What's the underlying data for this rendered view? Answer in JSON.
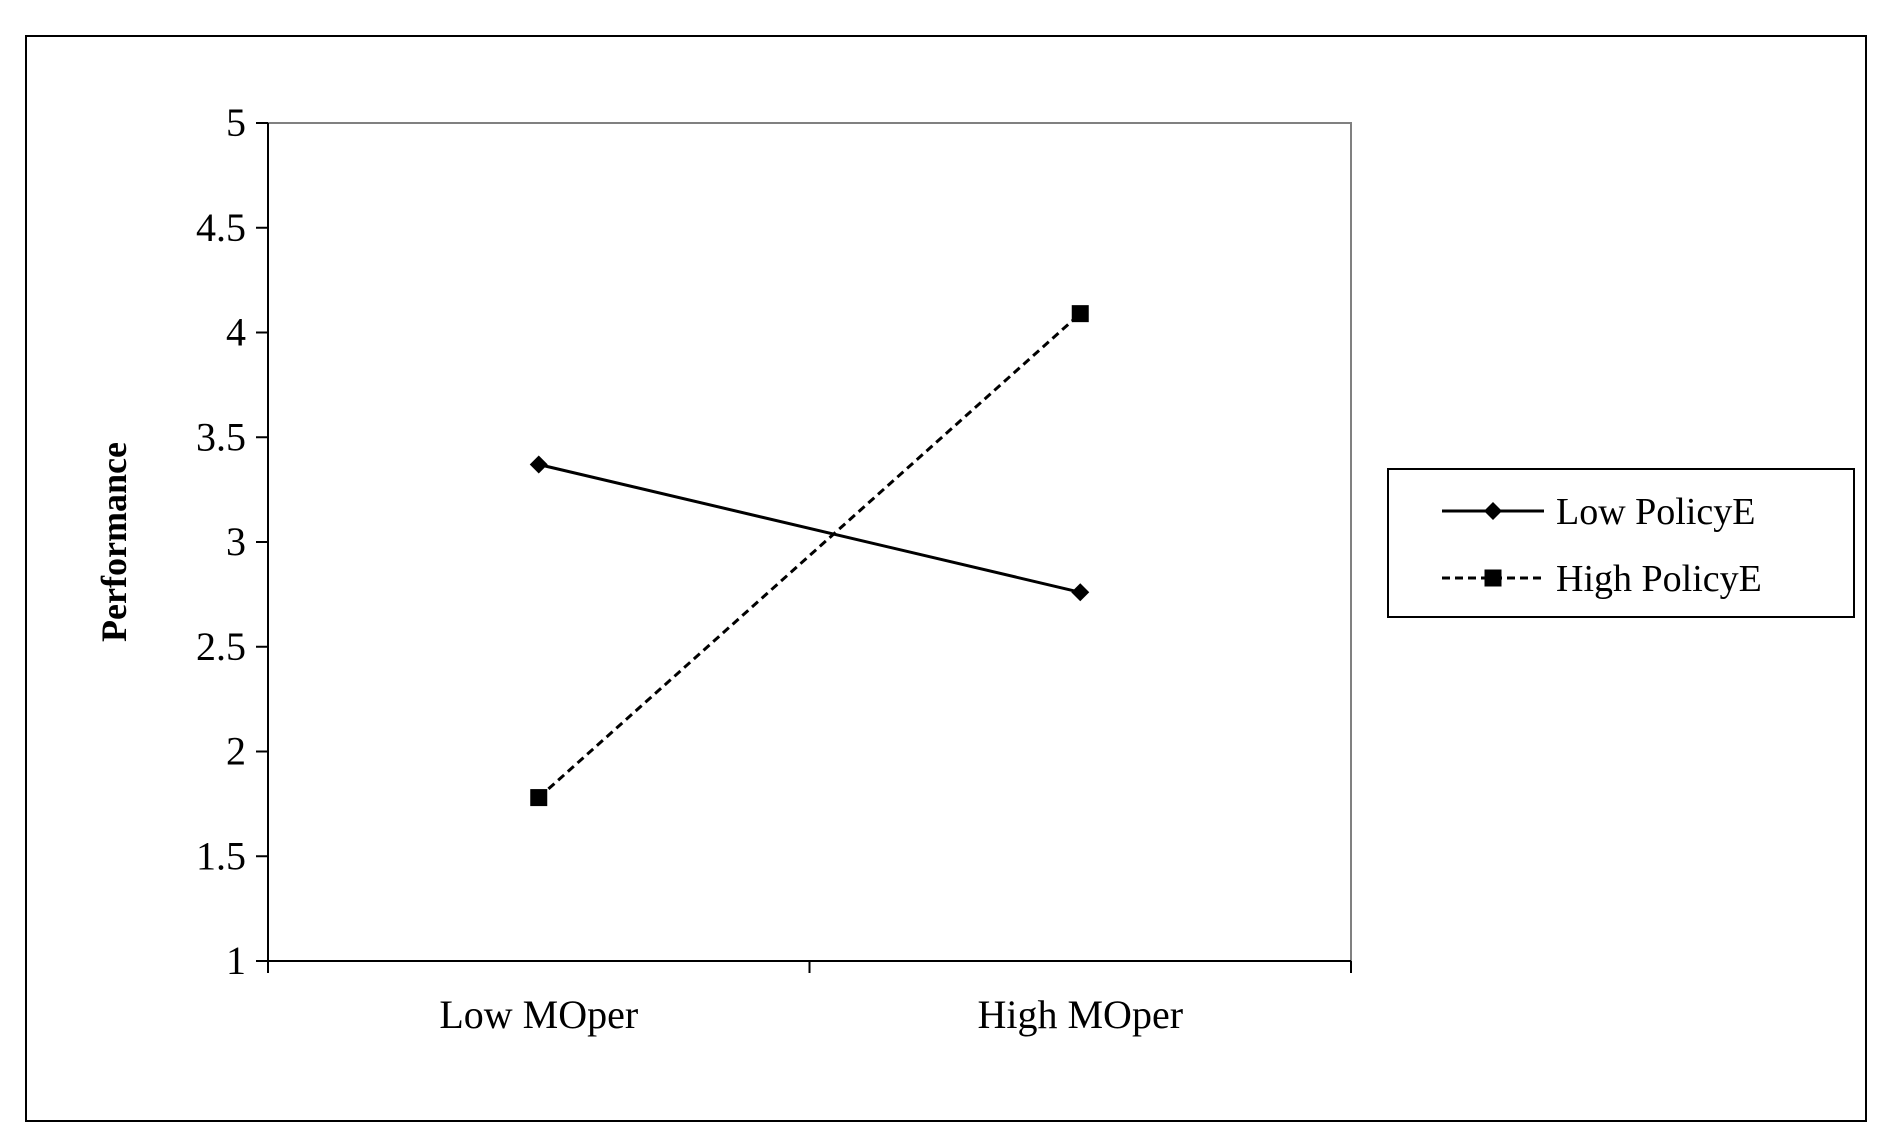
{
  "chart_data": {
    "type": "line",
    "title": "",
    "xlabel": "",
    "ylabel": "Performance",
    "categories": [
      "Low MOper",
      "High MOper"
    ],
    "ylim": [
      1,
      5
    ],
    "yticks": [
      "1",
      "1.5",
      "2",
      "2.5",
      "3",
      "3.5",
      "4",
      "4.5",
      "5"
    ],
    "grid": false,
    "legend_position": "right",
    "series": [
      {
        "name": "Low PolicyE",
        "values": [
          3.37,
          2.76
        ],
        "line_style": "solid",
        "marker": "diamond",
        "color": "#000000"
      },
      {
        "name": "High PolicyE",
        "values": [
          1.78,
          4.09
        ],
        "line_style": "dashed",
        "marker": "square",
        "color": "#000000"
      }
    ]
  }
}
